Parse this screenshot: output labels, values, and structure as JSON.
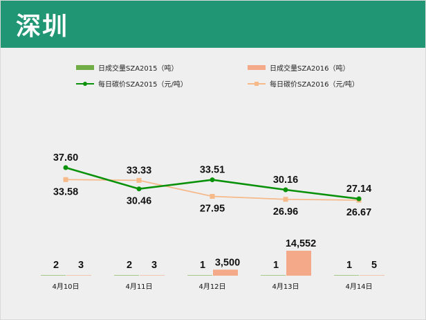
{
  "title": "深圳",
  "chart_data": {
    "type": "bar+line",
    "categories": [
      "4月10日",
      "4月11日",
      "4月12日",
      "4月13日",
      "4月14日"
    ],
    "series": [
      {
        "name": "日成交量SZA2015（吨）",
        "kind": "bar",
        "color": "#70ad47",
        "values": [
          2,
          2,
          1,
          1,
          1
        ],
        "labels": [
          "2",
          "2",
          "1",
          "1",
          "1"
        ]
      },
      {
        "name": "日成交量SZA2016（吨）",
        "kind": "bar",
        "color": "#f4a988",
        "values": [
          3,
          3,
          3500,
          14552,
          5
        ],
        "labels": [
          "3",
          "3",
          "3,500",
          "14,552",
          "5"
        ]
      },
      {
        "name": "每日碳价SZA2015（元/吨）",
        "kind": "line",
        "color": "#0a910a",
        "values": [
          37.6,
          30.46,
          33.51,
          30.16,
          27.14
        ],
        "labels": [
          "37.60",
          "30.46",
          "33.51",
          "30.16",
          "27.14"
        ]
      },
      {
        "name": "每日碳价SZA2016（元/吨）",
        "kind": "line",
        "color": "#f5b98a",
        "values": [
          33.58,
          33.33,
          27.95,
          26.96,
          26.67
        ],
        "labels": [
          "33.58",
          "33.33",
          "27.95",
          "26.96",
          "26.67"
        ]
      }
    ],
    "bar_max": 14552,
    "price_range": [
      26.67,
      37.6
    ],
    "legend": "top",
    "grid": false
  }
}
